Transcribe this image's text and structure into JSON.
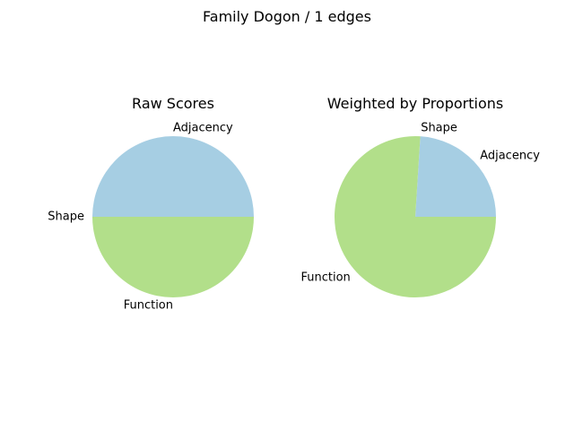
{
  "figure": {
    "title": "Family Dogon / 1 edges"
  },
  "chart_data": [
    {
      "type": "pie",
      "title": "Raw Scores",
      "labels": [
        "Adjacency",
        "Shape",
        "Function"
      ],
      "values": [
        0.5,
        0.0,
        0.5
      ],
      "colors": [
        "#a6cee3",
        "#b2df8a",
        "#b2df8a"
      ],
      "start_angle_deg": 0,
      "direction": "counterclockwise"
    },
    {
      "type": "pie",
      "title": "Weighted by Proportions",
      "labels": [
        "Adjacency",
        "Shape",
        "Function"
      ],
      "values": [
        0.24,
        0.0,
        0.76
      ],
      "colors": [
        "#a6cee3",
        "#b2df8a",
        "#b2df8a"
      ],
      "start_angle_deg": 0,
      "direction": "counterclockwise"
    }
  ]
}
